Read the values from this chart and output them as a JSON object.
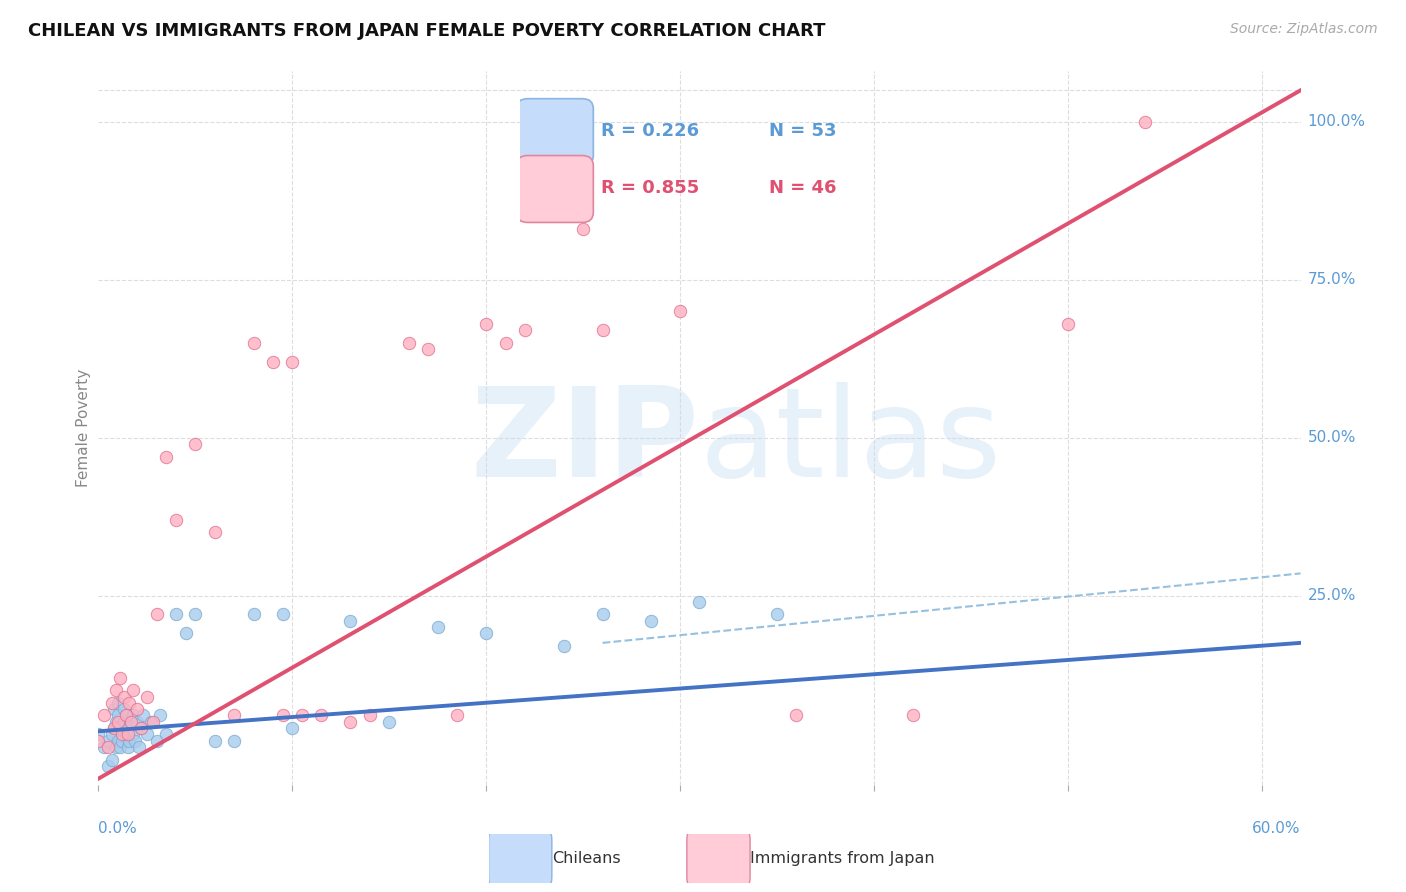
{
  "title": "CHILEAN VS IMMIGRANTS FROM JAPAN FEMALE POVERTY CORRELATION CHART",
  "source": "Source: ZipAtlas.com",
  "ylabel": "Female Poverty",
  "xlim": [
    0.0,
    0.62
  ],
  "ylim": [
    -0.05,
    1.08
  ],
  "color_blue": "#A8CCEE",
  "color_pink": "#FFB0C0",
  "color_edge_blue": "#7AAAD0",
  "color_edge_pink": "#E07090",
  "color_line_blue": "#4472C4",
  "color_line_pink": "#E05070",
  "color_dash": "#8ABADD",
  "color_axis_label": "#5B9BD5",
  "chileans_x": [
    0.0,
    0.003,
    0.005,
    0.005,
    0.007,
    0.007,
    0.008,
    0.008,
    0.009,
    0.009,
    0.01,
    0.01,
    0.01,
    0.011,
    0.011,
    0.012,
    0.013,
    0.013,
    0.014,
    0.014,
    0.015,
    0.015,
    0.016,
    0.017,
    0.018,
    0.018,
    0.019,
    0.02,
    0.021,
    0.022,
    0.023,
    0.025,
    0.027,
    0.03,
    0.032,
    0.035,
    0.04,
    0.045,
    0.05,
    0.06,
    0.07,
    0.08,
    0.095,
    0.1,
    0.13,
    0.15,
    0.175,
    0.2,
    0.24,
    0.26,
    0.285,
    0.31,
    0.35
  ],
  "chileans_y": [
    0.03,
    0.01,
    -0.02,
    0.02,
    -0.01,
    0.03,
    0.04,
    0.07,
    0.01,
    0.05,
    0.02,
    0.06,
    0.08,
    0.01,
    0.04,
    0.02,
    0.05,
    0.07,
    0.03,
    0.06,
    0.01,
    0.04,
    0.02,
    0.05,
    0.03,
    0.06,
    0.02,
    0.05,
    0.01,
    0.04,
    0.06,
    0.03,
    0.05,
    0.02,
    0.06,
    0.03,
    0.22,
    0.19,
    0.22,
    0.02,
    0.02,
    0.22,
    0.22,
    0.04,
    0.21,
    0.05,
    0.2,
    0.19,
    0.17,
    0.22,
    0.21,
    0.24,
    0.22
  ],
  "japan_x": [
    0.0,
    0.003,
    0.005,
    0.007,
    0.008,
    0.009,
    0.01,
    0.011,
    0.012,
    0.013,
    0.014,
    0.015,
    0.016,
    0.017,
    0.018,
    0.02,
    0.022,
    0.025,
    0.028,
    0.03,
    0.035,
    0.04,
    0.05,
    0.06,
    0.08,
    0.1,
    0.115,
    0.13,
    0.16,
    0.185,
    0.2,
    0.22,
    0.26,
    0.3,
    0.095,
    0.105,
    0.25,
    0.36,
    0.42,
    0.5,
    0.54,
    0.07,
    0.09,
    0.14,
    0.17,
    0.21
  ],
  "japan_y": [
    0.02,
    0.06,
    0.01,
    0.08,
    0.04,
    0.1,
    0.05,
    0.12,
    0.03,
    0.09,
    0.06,
    0.03,
    0.08,
    0.05,
    0.1,
    0.07,
    0.04,
    0.09,
    0.05,
    0.22,
    0.47,
    0.37,
    0.49,
    0.35,
    0.65,
    0.62,
    0.06,
    0.05,
    0.65,
    0.06,
    0.68,
    0.67,
    0.67,
    0.7,
    0.06,
    0.06,
    0.83,
    0.06,
    0.06,
    0.68,
    1.0,
    0.06,
    0.62,
    0.06,
    0.64,
    0.65
  ],
  "blue_line_x0": 0.0,
  "blue_line_x1": 0.62,
  "blue_line_y0": 0.035,
  "blue_line_y1": 0.175,
  "pink_line_x0": 0.0,
  "pink_line_x1": 0.62,
  "pink_line_y0": -0.04,
  "pink_line_y1": 1.05,
  "dash_line_x0": 0.26,
  "dash_line_x1": 0.62,
  "dash_line_y0": 0.175,
  "dash_line_y1": 0.285
}
